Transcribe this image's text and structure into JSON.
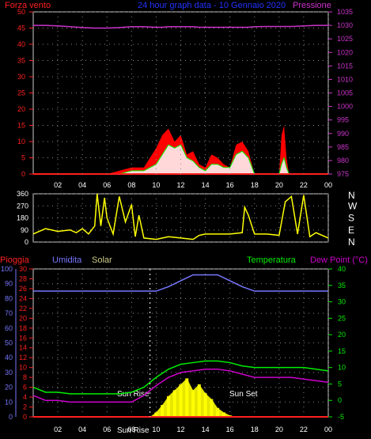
{
  "header": {
    "left_label": "Forza vento",
    "title": "24 hour graph data - 10 Gennaio 2020",
    "right_label": "Pressione"
  },
  "colors": {
    "wind": "#ff2020",
    "wind_fill": "#ff0000",
    "gust": "#00ff00",
    "pressure": "#cc33cc",
    "direction": "#ffff00",
    "humidity": "#7777ff",
    "temperature": "#00ee00",
    "dewpoint": "#cc00cc",
    "solar": "#ffff00",
    "rain": "#ff2020",
    "grid": "#888888"
  },
  "chart_data": [
    {
      "type": "line",
      "name": "wind-pressure",
      "x_ticks": [
        "02",
        "04",
        "06",
        "08",
        "10",
        "12",
        "14",
        "16",
        "18",
        "20",
        "22",
        "00"
      ],
      "y_left_ticks": [
        0,
        5,
        10,
        15,
        20,
        25,
        30,
        35,
        40,
        45,
        50
      ],
      "y_left_range": [
        0,
        50
      ],
      "y_right_ticks": [
        975,
        980,
        985,
        990,
        995,
        1000,
        1005,
        1010,
        1015,
        1020,
        1025,
        1030,
        1035
      ],
      "y_right_range": [
        975,
        1035
      ],
      "hours": [
        0,
        1,
        2,
        3,
        4,
        5,
        6,
        7,
        8,
        9,
        10,
        10.5,
        11,
        11.5,
        12,
        12.5,
        13,
        13.5,
        14,
        14.5,
        15,
        15.5,
        16,
        16.5,
        17,
        17.5,
        18,
        19,
        20,
        20.2,
        20.4,
        20.6,
        20.8,
        21,
        22,
        23,
        24
      ],
      "wind": [
        0,
        0,
        0,
        0,
        0,
        0,
        0,
        1,
        2,
        2,
        8,
        12,
        14,
        10,
        12,
        6,
        7,
        3,
        2,
        6,
        5,
        3,
        2,
        9,
        10,
        7,
        0,
        0,
        0,
        12,
        15,
        5,
        0,
        0,
        0,
        0,
        0
      ],
      "gust": [
        0,
        0,
        0,
        0,
        0,
        0,
        0,
        0,
        1,
        1,
        3,
        6,
        9,
        8,
        9,
        5,
        4,
        2,
        1,
        3,
        3,
        2,
        2,
        6,
        7,
        5,
        0,
        0,
        0,
        3,
        5,
        2,
        0,
        0,
        0,
        0,
        0
      ],
      "pressure": [
        1030,
        1030,
        1029.8,
        1029.5,
        1029.2,
        1029,
        1029,
        1029.2,
        1029.5,
        1029.5,
        1029.3,
        1029.3,
        1029.5,
        1029.5,
        1029.5,
        1029.5,
        1029.5,
        1029.3,
        1029.3,
        1029.3,
        1029.3,
        1029.3,
        1029.3,
        1029.3,
        1029.3,
        1029.3,
        1029.5,
        1029.6,
        1029.6,
        1029.6,
        1029.6,
        1029.6,
        1029.6,
        1029.6,
        1029.8,
        1030,
        1030
      ]
    },
    {
      "type": "line",
      "name": "wind-direction",
      "y_ticks": [
        0,
        90,
        180,
        270,
        360
      ],
      "y_range": [
        0,
        360
      ],
      "compass": [
        "N",
        "W",
        "S",
        "E",
        "N"
      ],
      "hours": [
        0,
        1,
        2,
        3,
        3.5,
        4,
        4.5,
        5,
        5.2,
        5.5,
        5.8,
        6,
        6.5,
        7,
        7.5,
        8,
        8.3,
        8.6,
        9,
        10,
        11,
        12,
        13,
        13.5,
        14,
        15,
        16,
        17,
        17.2,
        17.5,
        18,
        19,
        20,
        20.5,
        21,
        21.5,
        22,
        22.5,
        23,
        24
      ],
      "direction": [
        60,
        100,
        80,
        90,
        70,
        100,
        60,
        120,
        360,
        120,
        330,
        180,
        60,
        340,
        150,
        280,
        40,
        200,
        30,
        20,
        40,
        30,
        20,
        50,
        60,
        60,
        60,
        70,
        260,
        200,
        60,
        60,
        50,
        300,
        340,
        60,
        350,
        40,
        70,
        30
      ]
    },
    {
      "type": "line",
      "name": "humidity-temperature",
      "x_ticks": [
        "02",
        "04",
        "06",
        "08",
        "10",
        "12",
        "14",
        "16",
        "18",
        "20",
        "22",
        "00"
      ],
      "y_left_labels": [
        "Pioggia",
        "Umidita",
        "Solar"
      ],
      "y_rain_ticks": [
        0,
        2,
        4,
        6,
        8,
        10,
        12,
        14,
        16,
        18,
        20,
        22,
        24,
        26,
        28,
        30
      ],
      "y_humidity_ticks": [
        0,
        10,
        20,
        30,
        40,
        50,
        60,
        70,
        80,
        90,
        100
      ],
      "y_right_ticks": [
        -5,
        0,
        5,
        10,
        15,
        20,
        25,
        30,
        35,
        40
      ],
      "y_right_range": [
        -5,
        40
      ],
      "temperature_label": "Temperatura",
      "dewpoint_label": "Dew Point (°C)",
      "annotations": [
        "Sun Rise",
        "Sun Set",
        "Sun Rise"
      ],
      "hours": [
        0,
        1,
        2,
        3,
        4,
        5,
        6,
        7,
        8,
        9,
        10,
        11,
        12,
        13,
        14,
        15,
        16,
        17,
        18,
        19,
        20,
        21,
        22,
        23,
        24
      ],
      "humidity": [
        85,
        85,
        85,
        85,
        85,
        85,
        85,
        85,
        85,
        85,
        85,
        88,
        92,
        96,
        96,
        96,
        92,
        88,
        85,
        85,
        85,
        85,
        85,
        85,
        85
      ],
      "temperature": [
        4,
        2.5,
        2.5,
        2,
        2,
        2,
        2,
        2,
        2.5,
        4,
        7,
        9.5,
        11,
        11.5,
        12,
        12,
        11.5,
        10.5,
        10,
        10,
        10,
        10,
        10,
        9.5,
        9
      ],
      "dewpoint": [
        1.5,
        0,
        0,
        -0.5,
        -0.5,
        -0.5,
        -0.5,
        -0.5,
        -0.5,
        1.5,
        4.5,
        7,
        8.5,
        9,
        9.5,
        9.5,
        9,
        8,
        7,
        7,
        7,
        7,
        6.5,
        6,
        5.5
      ],
      "solar_hours": [
        9.5,
        10,
        10.5,
        11,
        11.5,
        12,
        12.5,
        13,
        13.5,
        14,
        14.5,
        15,
        15.5,
        16,
        16.5
      ],
      "solar": [
        0,
        3,
        8,
        14,
        18,
        22,
        26,
        18,
        22,
        16,
        12,
        6,
        3,
        1,
        0
      ],
      "rain": [
        0,
        0,
        0,
        0,
        0,
        0,
        0,
        0,
        0,
        0,
        0,
        0,
        0,
        0,
        0,
        0,
        0,
        0,
        0,
        0,
        0,
        0,
        0,
        0,
        0
      ]
    }
  ]
}
